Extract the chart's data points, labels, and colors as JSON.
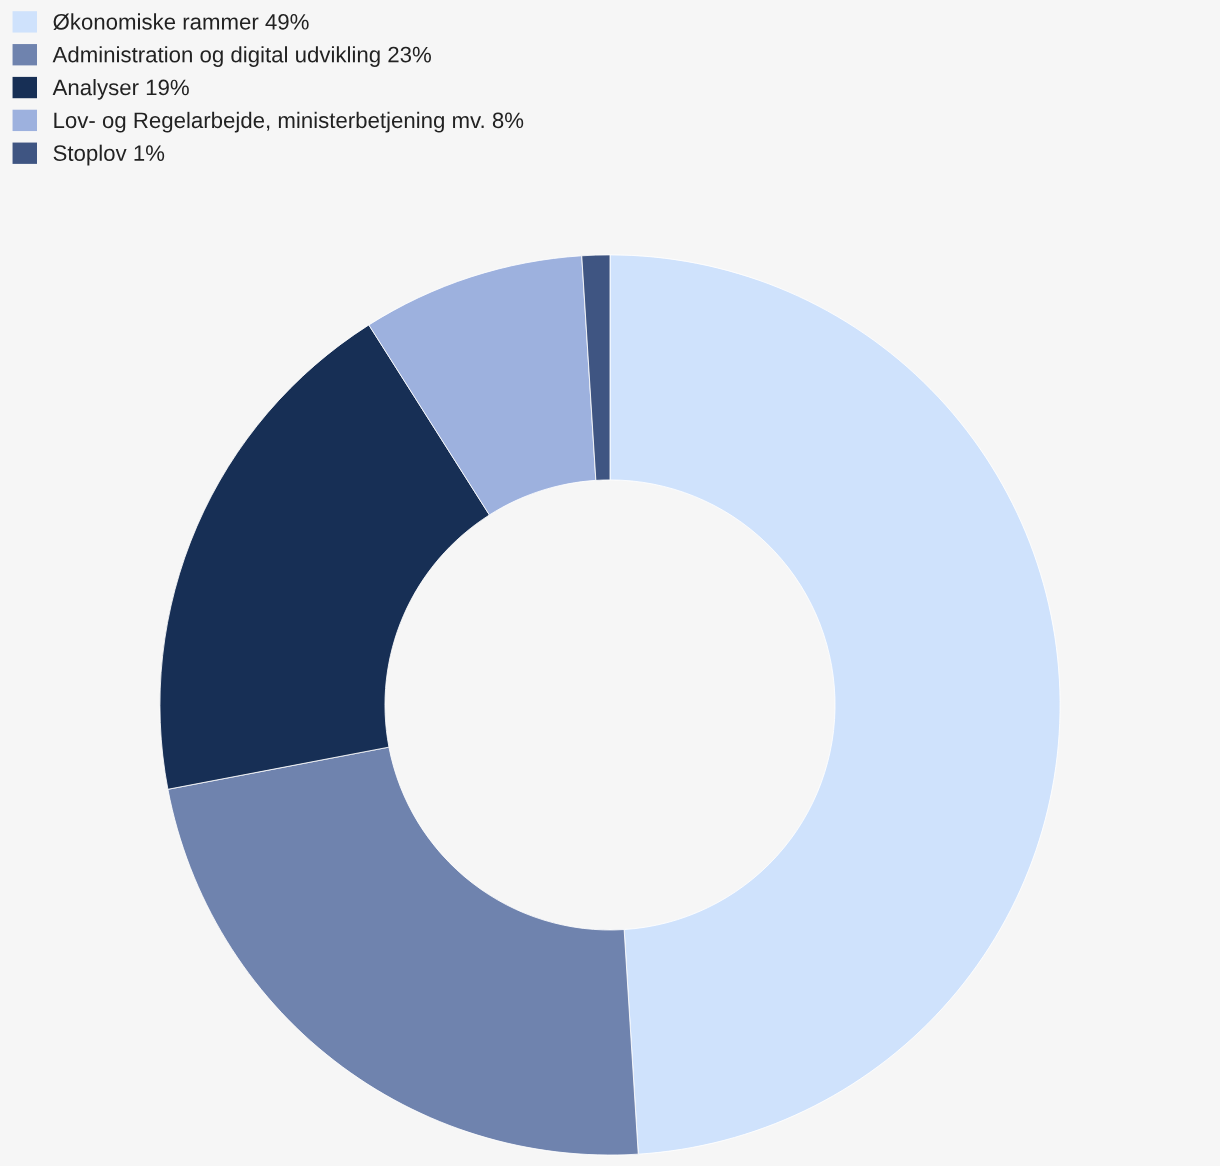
{
  "chart_data": {
    "type": "donut",
    "categories": [
      "Økonomiske rammer 49%",
      "Administration og digital udvikling 23%",
      "Analyser 19%",
      "Lov- og Regelarbejde, ministerbetjening mv. 8%",
      "Stoplov 1%"
    ],
    "values": [
      49,
      23,
      19,
      8,
      1
    ],
    "colors": [
      "#cfe2fc",
      "#6f83ae",
      "#172f55",
      "#9db1de",
      "#3f5582"
    ],
    "legend": "top left"
  }
}
